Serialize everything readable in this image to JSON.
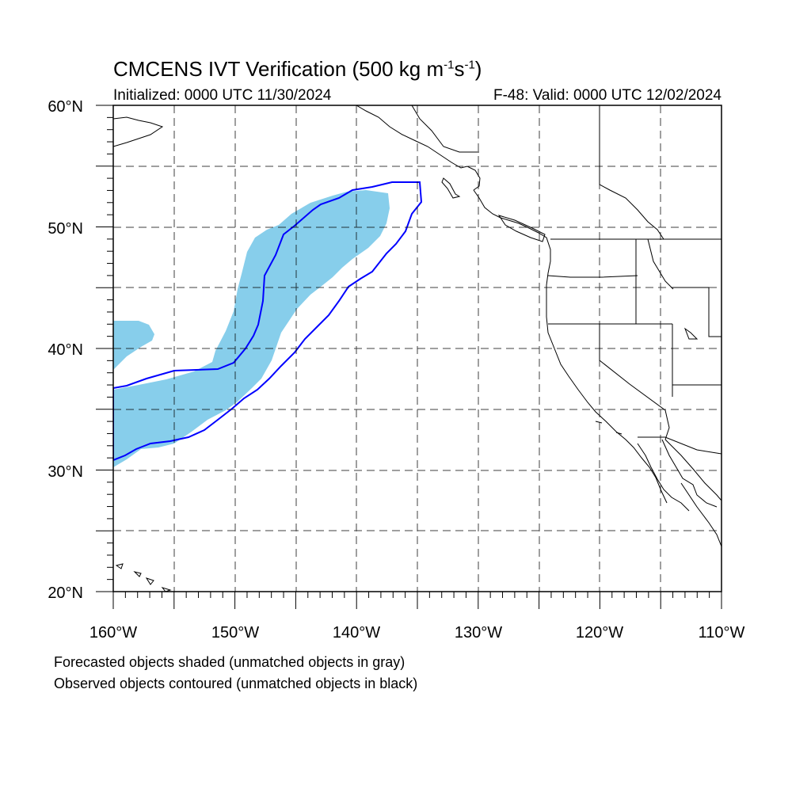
{
  "title_main": "CMCENS IVT Verification (500 kg m",
  "title_exp1": "-1",
  "title_mid": "s",
  "title_exp2": "-1",
  "title_end": ")",
  "initialized": "Initialized: 0000 UTC 11/30/2024",
  "valid": "F-48: Valid: 0000 UTC 12/02/2024",
  "footnote_forecast": "Forecasted objects shaded (unmatched objects in gray)",
  "footnote_observed": "Observed objects contoured (unmatched objects in black)",
  "map": {
    "projection": "cylindrical equidistant",
    "lon_range": [
      -160,
      -110
    ],
    "lat_range": [
      20,
      60
    ],
    "gridlines": "dashed",
    "lat_labels": [
      "60°N",
      "50°N",
      "40°N",
      "30°N",
      "20°N"
    ],
    "lon_labels": [
      "160°W",
      "150°W",
      "140°W",
      "130°W",
      "120°W",
      "110°W"
    ],
    "forecast_fill_color": "#87ceeb",
    "observed_contour_color": "#0000ff",
    "coast_color": "#000000"
  }
}
